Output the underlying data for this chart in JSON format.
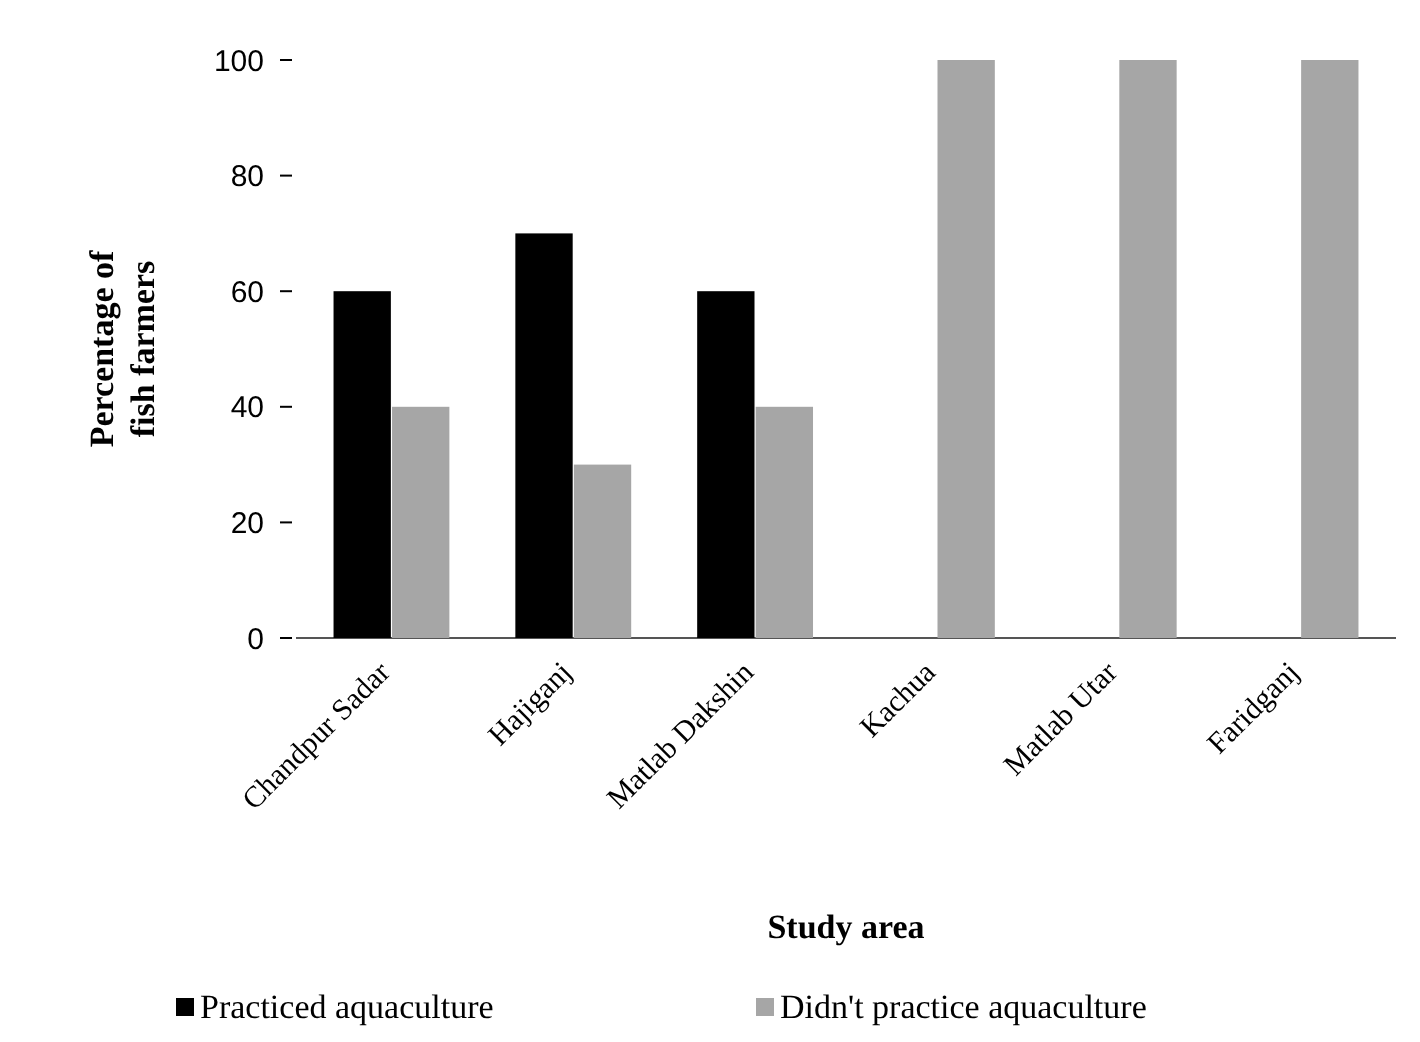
{
  "chart_data": {
    "type": "bar",
    "xlabel": "Study area",
    "ylabel": "Percentage of fish farmers",
    "categories": [
      "Chandpur Sadar",
      "Hajiganj",
      "Matlab Dakshin",
      "Kachua",
      "Matlab Utar",
      "Faridganj"
    ],
    "series": [
      {
        "name": "Practiced aquaculture",
        "color": "#000000",
        "values": [
          60,
          70,
          60,
          0,
          0,
          0
        ]
      },
      {
        "name": "Didn't practice aquaculture",
        "color": "#a6a6a6",
        "values": [
          40,
          30,
          40,
          100,
          100,
          100
        ]
      }
    ],
    "ylim": [
      0,
      100
    ],
    "yticks": [
      0,
      20,
      40,
      60,
      80,
      100
    ],
    "grid": false,
    "legend": "bottom"
  }
}
